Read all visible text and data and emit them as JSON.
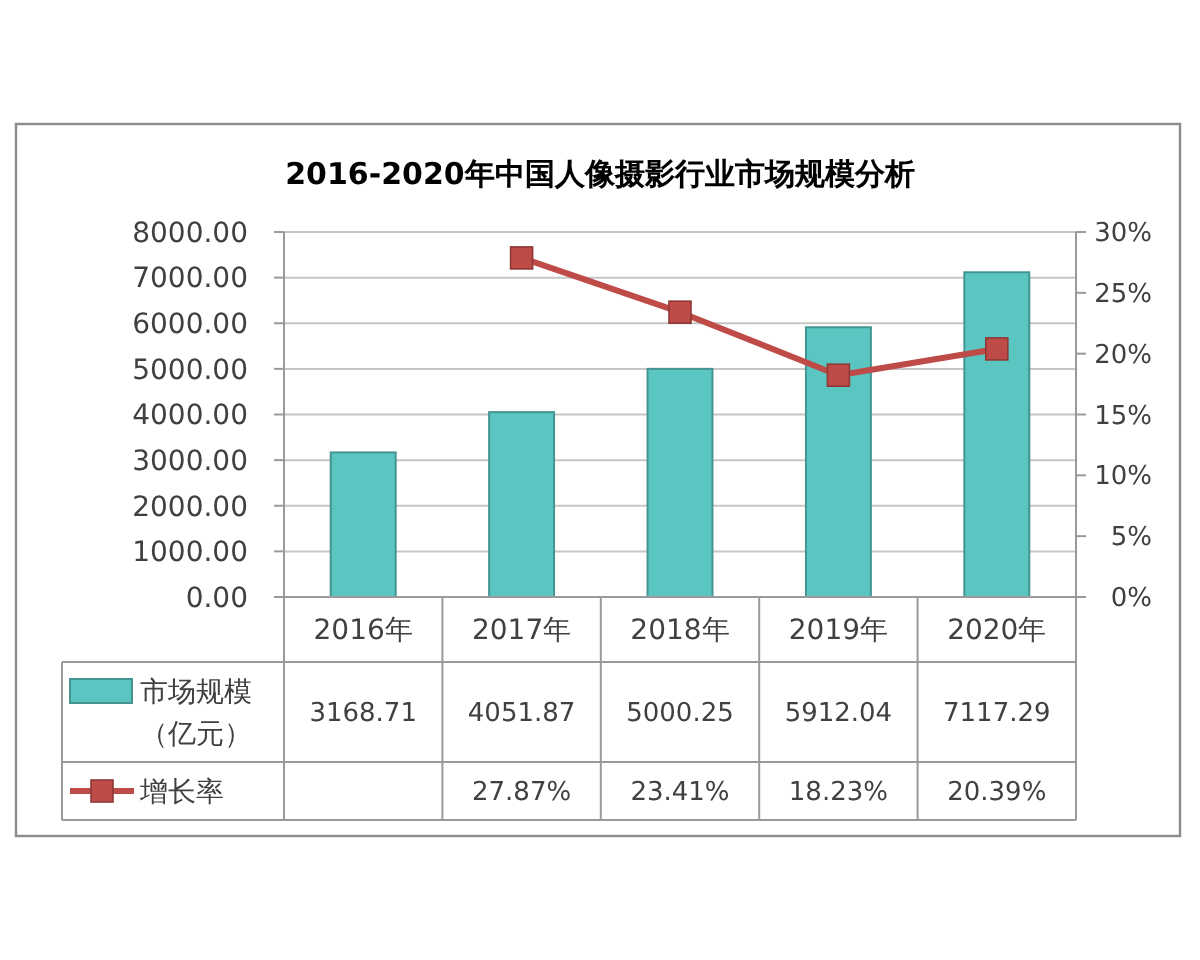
{
  "chart_data": {
    "type": "bar",
    "title": "2016-2020年中国人像摄影行业市场规模分析",
    "categories": [
      "2016年",
      "2017年",
      "2018年",
      "2019年",
      "2020年"
    ],
    "series": [
      {
        "name": "市场规模（亿元）",
        "color": "#5bc5c2",
        "values": [
          3168.71,
          4051.87,
          5000.25,
          5912.04,
          7117.29
        ],
        "value_labels": [
          "3168.71",
          "4051.87",
          "5000.25",
          "5912.04",
          "7117.29"
        ]
      },
      {
        "name": "增长率",
        "type": "line",
        "axis": "y2",
        "color": "#be4b48",
        "values": [
          null,
          27.87,
          23.41,
          18.23,
          20.39
        ],
        "value_labels": [
          null,
          "27.87%",
          "23.41%",
          "18.23%",
          "20.39%"
        ]
      }
    ],
    "ylim": [
      0,
      8000
    ],
    "yticks": [
      {
        "value": 0,
        "label": "0.00"
      },
      {
        "value": 1000,
        "label": "1000.00"
      },
      {
        "value": 2000,
        "label": "2000.00"
      },
      {
        "value": 3000,
        "label": "3000.00"
      },
      {
        "value": 4000,
        "label": "4000.00"
      },
      {
        "value": 5000,
        "label": "5000.00"
      },
      {
        "value": 6000,
        "label": "6000.00"
      },
      {
        "value": 7000,
        "label": "7000.00"
      },
      {
        "value": 8000,
        "label": "8000.00"
      }
    ],
    "y2lim": [
      0,
      30
    ],
    "y2ticks": [
      {
        "value": 0,
        "label": "0%"
      },
      {
        "value": 5,
        "label": "5%"
      },
      {
        "value": 10,
        "label": "10%"
      },
      {
        "value": 15,
        "label": "15%"
      },
      {
        "value": 20,
        "label": "20%"
      },
      {
        "value": 25,
        "label": "25%"
      },
      {
        "value": 30,
        "label": "30%"
      }
    ],
    "grid": "y",
    "legend": "bottom left",
    "marker": "square",
    "line_style": "solid"
  }
}
